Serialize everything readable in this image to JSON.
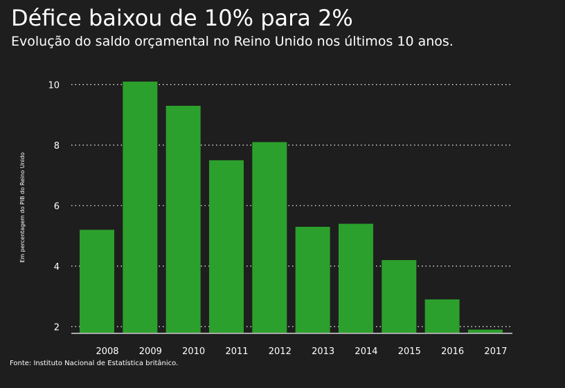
{
  "title": "Défice baixou de 10% para 2%",
  "subtitle": "Evolução do saldo orçamental no Reino Unido nos últimos 10 anos.",
  "source": "Fonte: Instituto Nacional de Estatística britânico.",
  "colors": {
    "background": "#1e1e1e",
    "bar": "#2ca02c",
    "text": "#ffffff",
    "grid": "#ffffff"
  },
  "chart_data": {
    "type": "bar",
    "title": "Défice baixou de 10% para 2%",
    "subtitle": "Evolução do saldo orçamental no Reino Unido nos últimos 10 anos.",
    "xlabel": "",
    "ylabel": "Em percentagem do PIB do Reino Unido",
    "categories": [
      "2008",
      "2009",
      "2010",
      "2011",
      "2012",
      "2013",
      "2014",
      "2015",
      "2016",
      "2017"
    ],
    "values": [
      5.2,
      10.1,
      9.3,
      7.5,
      8.1,
      5.3,
      5.4,
      4.2,
      2.9,
      1.9
    ],
    "ylim": [
      1.8,
      10.1
    ],
    "yticks": [
      2,
      4,
      6,
      8,
      10
    ],
    "grid": "horizontal dotted",
    "legend": "none"
  }
}
